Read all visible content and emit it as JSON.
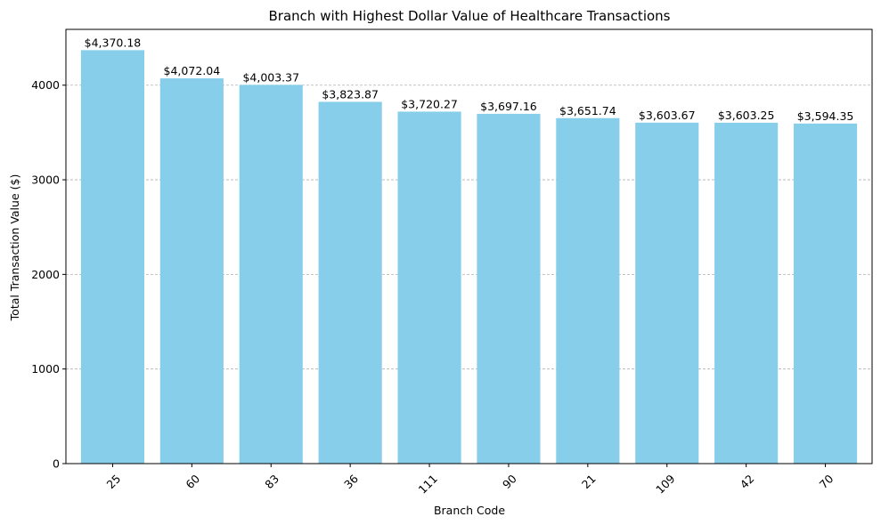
{
  "chart_data": {
    "type": "bar",
    "title": "Branch with Highest Dollar Value of Healthcare Transactions",
    "xlabel": "Branch Code",
    "ylabel": "Total Transaction Value ($)",
    "categories": [
      "25",
      "60",
      "83",
      "36",
      "111",
      "90",
      "21",
      "109",
      "42",
      "70"
    ],
    "values": [
      4370.18,
      4072.04,
      4003.37,
      3823.87,
      3720.27,
      3697.16,
      3651.74,
      3603.67,
      3603.25,
      3594.35
    ],
    "value_labels": [
      "$4,370.18",
      "$4,072.04",
      "$4,003.37",
      "$3,823.87",
      "$3,720.27",
      "$3,697.16",
      "$3,651.74",
      "$3,603.67",
      "$3,603.25",
      "$3,594.35"
    ],
    "ylim": [
      0,
      4590
    ],
    "yticks": [
      0,
      1000,
      2000,
      3000,
      4000
    ],
    "ytick_labels": [
      "0",
      "1000",
      "2000",
      "3000",
      "4000"
    ],
    "xtick_rotation_deg": -45,
    "grid": "y-dashed",
    "legend": "none",
    "colors": {
      "bar": "#87ceeb",
      "grid": "#b0b0b0",
      "axis": "#000000",
      "text": "#000000"
    }
  }
}
